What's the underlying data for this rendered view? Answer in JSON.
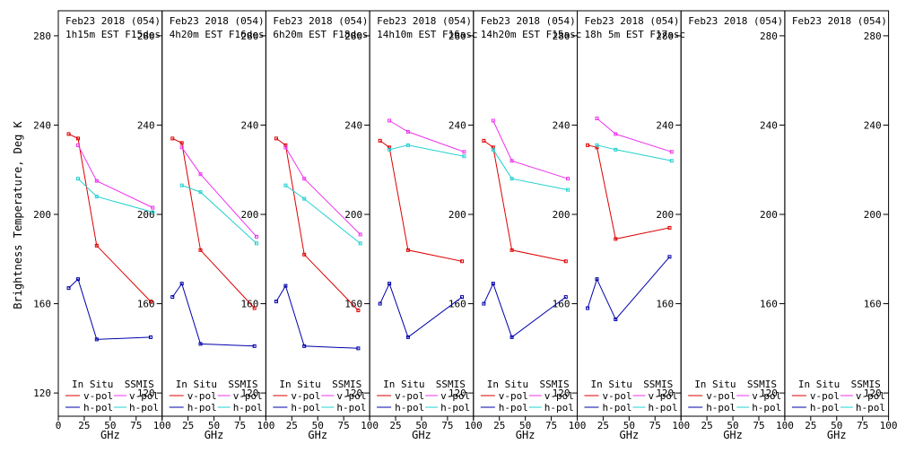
{
  "figure": {
    "ylabel": "Brightness Temperature, Deg K",
    "xlabel": "GHz",
    "legend": {
      "insitu_label": "In Situ",
      "ssmis_label": "SSMIS",
      "vpol_label": "v-pol",
      "hpol_label": "h-pol"
    },
    "colors": {
      "insitu_v": "#dd0000",
      "insitu_h": "#0000aa",
      "ssmis_v": "#ee33ee",
      "ssmis_h": "#22d0d0",
      "axis": "#000000"
    }
  },
  "chart_data": {
    "type": "line",
    "xlim": [
      0,
      100
    ],
    "ylim": [
      110,
      290
    ],
    "yticks": [
      120,
      160,
      200,
      240,
      280
    ],
    "xticks": [
      0,
      25,
      50,
      75,
      100
    ],
    "panels": [
      {
        "title_line1": "Feb23 2018 (054)",
        "title_line2": "1h15m EST F15des",
        "series": [
          {
            "name": "In Situ v-pol",
            "x": [
              10,
              19,
              37,
              89
            ],
            "y": [
              236,
              234,
              186,
              161
            ]
          },
          {
            "name": "In Situ h-pol",
            "x": [
              10,
              19,
              37,
              89
            ],
            "y": [
              167,
              171,
              144,
              145
            ]
          },
          {
            "name": "SSMIS v-pol",
            "x": [
              19,
              37,
              91
            ],
            "y": [
              231,
              215,
              203
            ]
          },
          {
            "name": "SSMIS h-pol",
            "x": [
              19,
              37,
              91
            ],
            "y": [
              216,
              208,
              201
            ]
          }
        ]
      },
      {
        "title_line1": "Feb23 2018 (054)",
        "title_line2": "4h20m EST F16des",
        "series": [
          {
            "name": "In Situ v-pol",
            "x": [
              10,
              19,
              37,
              89
            ],
            "y": [
              234,
              232,
              184,
              158
            ]
          },
          {
            "name": "In Situ h-pol",
            "x": [
              10,
              19,
              37,
              89
            ],
            "y": [
              163,
              169,
              142,
              141
            ]
          },
          {
            "name": "SSMIS v-pol",
            "x": [
              19,
              37,
              91
            ],
            "y": [
              230,
              218,
              190
            ]
          },
          {
            "name": "SSMIS h-pol",
            "x": [
              19,
              37,
              91
            ],
            "y": [
              213,
              210,
              187
            ]
          }
        ]
      },
      {
        "title_line1": "Feb23 2018 (054)",
        "title_line2": "6h20m EST F18des",
        "series": [
          {
            "name": "In Situ v-pol",
            "x": [
              10,
              19,
              37,
              89
            ],
            "y": [
              234,
              231,
              182,
              157
            ]
          },
          {
            "name": "In Situ h-pol",
            "x": [
              10,
              19,
              37,
              89
            ],
            "y": [
              161,
              168,
              141,
              140
            ]
          },
          {
            "name": "SSMIS v-pol",
            "x": [
              19,
              37,
              91
            ],
            "y": [
              230,
              216,
              191
            ]
          },
          {
            "name": "SSMIS h-pol",
            "x": [
              19,
              37,
              91
            ],
            "y": [
              213,
              207,
              187
            ]
          }
        ]
      },
      {
        "title_line1": "Feb23 2018 (054)",
        "title_line2": "14h10m EST F16asc",
        "series": [
          {
            "name": "In Situ v-pol",
            "x": [
              10,
              19,
              37,
              89
            ],
            "y": [
              233,
              230,
              184,
              179
            ]
          },
          {
            "name": "In Situ h-pol",
            "x": [
              10,
              19,
              37,
              89
            ],
            "y": [
              160,
              169,
              145,
              163
            ]
          },
          {
            "name": "SSMIS v-pol",
            "x": [
              19,
              37,
              91
            ],
            "y": [
              242,
              237,
              228
            ]
          },
          {
            "name": "SSMIS h-pol",
            "x": [
              19,
              37,
              91
            ],
            "y": [
              229,
              231,
              226
            ]
          }
        ]
      },
      {
        "title_line1": "Feb23 2018 (054)",
        "title_line2": "14h20m EST F15asc",
        "series": [
          {
            "name": "In Situ v-pol",
            "x": [
              10,
              19,
              37,
              89
            ],
            "y": [
              233,
              230,
              184,
              179
            ]
          },
          {
            "name": "In Situ h-pol",
            "x": [
              10,
              19,
              37,
              89
            ],
            "y": [
              160,
              169,
              145,
              163
            ]
          },
          {
            "name": "SSMIS v-pol",
            "x": [
              19,
              37,
              91
            ],
            "y": [
              242,
              224,
              216
            ]
          },
          {
            "name": "SSMIS h-pol",
            "x": [
              19,
              37,
              91
            ],
            "y": [
              229,
              216,
              211
            ]
          }
        ]
      },
      {
        "title_line1": "Feb23 2018 (054)",
        "title_line2": "18h 5m EST F17asc",
        "series": [
          {
            "name": "In Situ v-pol",
            "x": [
              10,
              19,
              37,
              89
            ],
            "y": [
              231,
              230,
              189,
              194
            ]
          },
          {
            "name": "In Situ h-pol",
            "x": [
              10,
              19,
              37,
              89
            ],
            "y": [
              158,
              171,
              153,
              181
            ]
          },
          {
            "name": "SSMIS v-pol",
            "x": [
              19,
              37,
              91
            ],
            "y": [
              243,
              236,
              228
            ]
          },
          {
            "name": "SSMIS h-pol",
            "x": [
              19,
              37,
              91
            ],
            "y": [
              231,
              229,
              224
            ]
          }
        ]
      },
      {
        "title_line1": "Feb23 2018 (054)",
        "title_line2": "",
        "series": []
      },
      {
        "title_line1": "Feb23 2018 (054)",
        "title_line2": "",
        "series": []
      }
    ]
  }
}
